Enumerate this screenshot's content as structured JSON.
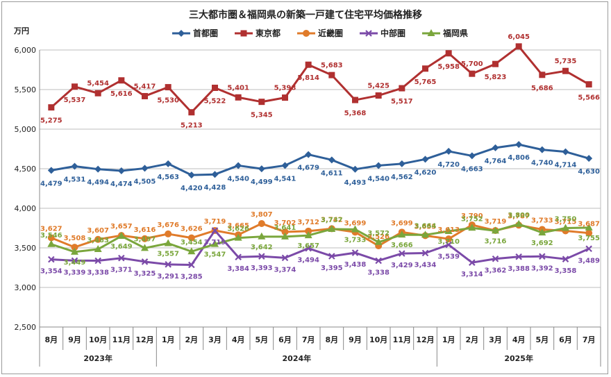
{
  "chart_data": {
    "type": "line",
    "title": "三大都市圏＆福岡県の新築一戸建て住宅平均価格推移",
    "ylabel": "万円",
    "ylim": [
      2500,
      6000
    ],
    "yticks": [
      "2,500",
      "3,000",
      "3,500",
      "4,000",
      "4,500",
      "5,000",
      "5,500",
      "6,000"
    ],
    "ytick_values": [
      2500,
      3000,
      3500,
      4000,
      4500,
      5000,
      5500,
      6000
    ],
    "grid": true,
    "legend_position": "top-center",
    "categories": [
      "8月",
      "9月",
      "10月",
      "11月",
      "12月",
      "1月",
      "2月",
      "3月",
      "4月",
      "5月",
      "6月",
      "7月",
      "8月",
      "9月",
      "10月",
      "11月",
      "12月",
      "1月",
      "2月",
      "3月",
      "4月",
      "5月",
      "6月",
      "7月"
    ],
    "year_groups": [
      {
        "label": "2023年",
        "count": 5
      },
      {
        "label": "2024年",
        "count": 12
      },
      {
        "label": "2025年",
        "count": 7
      }
    ],
    "series": [
      {
        "name": "首都圏",
        "color": "#2e5f99",
        "marker": "diamond",
        "values": [
          4479,
          4531,
          4494,
          4474,
          4505,
          4563,
          4420,
          4428,
          4540,
          4499,
          4541,
          4679,
          4611,
          4493,
          4540,
          4562,
          4620,
          4720,
          4663,
          4764,
          4806,
          4740,
          4714,
          4630
        ],
        "labels": [
          "4,479",
          "4,531",
          "4,494",
          "4,474",
          "4,505",
          "4,563",
          "4,420",
          "4,428",
          "4,540",
          "4,499",
          "4,541",
          "4,679",
          "4,611",
          "4,493",
          "4,540",
          "4,562",
          "4,620",
          "4,720",
          "4,663",
          "4,764",
          "4,806",
          "4,740",
          "4,714",
          "4,630"
        ]
      },
      {
        "name": "東京都",
        "color": "#b03030",
        "marker": "square",
        "values": [
          5275,
          5537,
          5454,
          5616,
          5417,
          5530,
          5213,
          5522,
          5401,
          5345,
          5398,
          5814,
          5683,
          5368,
          5425,
          5517,
          5765,
          5958,
          5700,
          5823,
          6045,
          5686,
          5735,
          5566
        ],
        "labels": [
          "5,275",
          "5,537",
          "5,454",
          "5,616",
          "5,417",
          "5,530",
          "5,213",
          "5,522",
          "5,401",
          "5,345",
          "5,398",
          "5,814",
          "5,683",
          "5,368",
          "5,425",
          "5,517",
          "5,765",
          "5,958",
          "5,700",
          "5,823",
          "6,045",
          "5,686",
          "5,735",
          "5,566"
        ]
      },
      {
        "name": "近畿圏",
        "color": "#e07b2a",
        "marker": "circle",
        "values": [
          3627,
          3508,
          3607,
          3657,
          3616,
          3676,
          3626,
          3719,
          3665,
          3807,
          3702,
          3712,
          3742,
          3699,
          3526,
          3699,
          3655,
          3613,
          3790,
          3719,
          3787,
          3733,
          3715,
          3687
        ],
        "labels": [
          "3,627",
          "3,508",
          "3,607",
          "3,657",
          "3,616",
          "3,676",
          "3,626",
          "3,719",
          "3,665",
          "3,807",
          "3,702",
          "3,712",
          "3,742",
          "3,699",
          "3,526",
          "3,699",
          "3,655",
          "3,613",
          "3,790",
          "3,719",
          "3,787",
          "3,733",
          "3,715",
          "3,687"
        ]
      },
      {
        "name": "中部圏",
        "color": "#7b4aa8",
        "marker": "x",
        "values": [
          3354,
          3339,
          3338,
          3371,
          3325,
          3291,
          3285,
          3719,
          3384,
          3393,
          3374,
          3494,
          3395,
          3438,
          3338,
          3429,
          3434,
          3539,
          3314,
          3362,
          3388,
          3392,
          3358,
          3489
        ],
        "labels": [
          "3,354",
          "3,339",
          "3,338",
          "3,371",
          "3,325",
          "3,291",
          "3,285",
          "3,719",
          "3,384",
          "3,393",
          "3,374",
          "3,494",
          "3,395",
          "3,438",
          "3,338",
          "3,429",
          "3,434",
          "3,539",
          "3,314",
          "3,362",
          "3,388",
          "3,392",
          "3,358",
          "3,489"
        ]
      },
      {
        "name": "福岡県",
        "color": "#7aa63c",
        "marker": "triangle",
        "values": [
          3546,
          3449,
          3483,
          3649,
          3497,
          3557,
          3454,
          3547,
          3626,
          3642,
          3641,
          3657,
          3737,
          3733,
          3572,
          3666,
          3664,
          3710,
          3752,
          3716,
          3800,
          3692,
          3750,
          3755
        ],
        "labels": [
          "3,546",
          "3,449",
          "3,483",
          "3,649",
          "3,497",
          "3,557",
          "3,454",
          "3,547",
          "3,626",
          "3,642",
          "3,641",
          "3,657",
          "3,737",
          "3,733",
          "3,572",
          "3,666",
          "3,664",
          "3,710",
          "3,752",
          "3,716",
          "3,800",
          "3,692",
          "3,750",
          "3,755"
        ]
      }
    ]
  }
}
